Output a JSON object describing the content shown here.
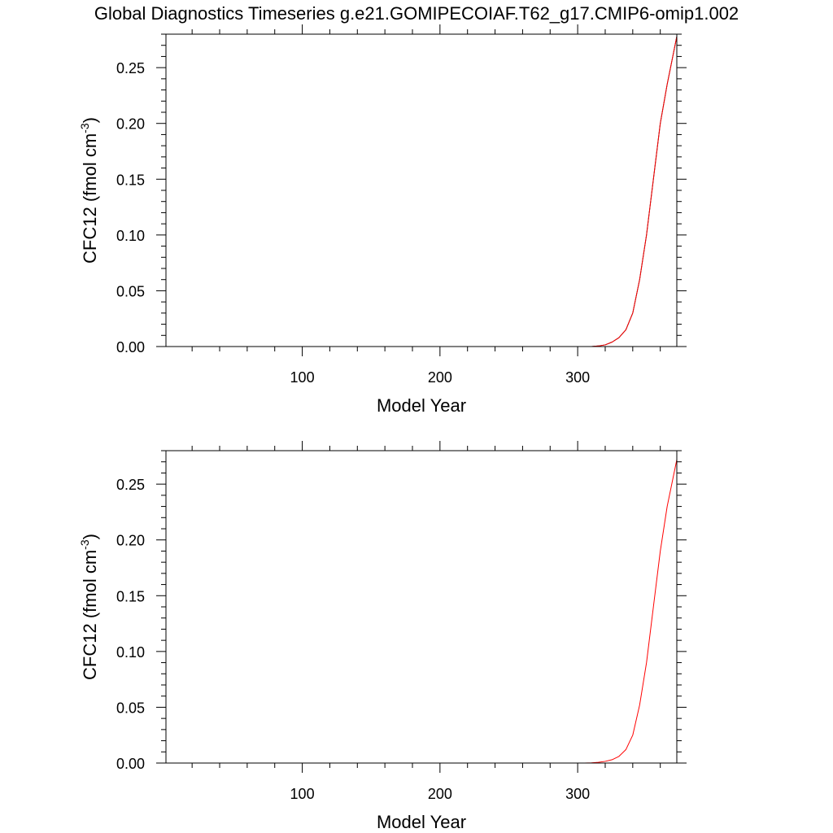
{
  "figure": {
    "title": "Global Diagnostics Timeseries g.e21.GOMIPECOIAF.T62_g17.CMIP6-omip1.002"
  },
  "chart_data": [
    {
      "type": "line",
      "title": "",
      "xlabel": "Model Year",
      "ylabel": "CFC12 (fmol cm-3)",
      "ylabel_parts": {
        "main": "CFC12 (fmol cm",
        "sup": "-3",
        "tail": ")"
      },
      "xlim": [
        1,
        372
      ],
      "ylim": [
        0,
        0.28
      ],
      "x_major_ticks": [
        100,
        200,
        300
      ],
      "x_tick_labels": [
        "100",
        "200",
        "300"
      ],
      "x_minor_step": 20,
      "y_major_ticks": [
        0,
        0.05,
        0.1,
        0.15,
        0.2,
        0.25
      ],
      "y_tick_labels": [
        "0.00",
        "0.05",
        "0.10",
        "0.15",
        "0.20",
        "0.25"
      ],
      "y_minor_step": 0.01,
      "grid": false,
      "series": [
        {
          "color": "#000000",
          "x": [
            1,
            300,
            310,
            315,
            320,
            325,
            330,
            335,
            340,
            345,
            350,
            355,
            360,
            365,
            372
          ],
          "y": [
            0,
            0,
            0,
            0.0005,
            0.0015,
            0.004,
            0.008,
            0.015,
            0.03,
            0.06,
            0.1,
            0.15,
            0.2,
            0.235,
            0.278
          ]
        },
        {
          "color": "#ff0000",
          "x": [
            1,
            300,
            310,
            315,
            320,
            325,
            330,
            335,
            340,
            345,
            350,
            355,
            360,
            365,
            372
          ],
          "y": [
            0,
            0,
            0,
            0.0005,
            0.0015,
            0.004,
            0.008,
            0.015,
            0.03,
            0.06,
            0.1,
            0.15,
            0.2,
            0.235,
            0.278
          ]
        }
      ]
    },
    {
      "type": "line",
      "title": "",
      "xlabel": "Model Year",
      "ylabel": "CFC12 (fmol cm-3)",
      "ylabel_parts": {
        "main": "CFC12 (fmol cm",
        "sup": "-3",
        "tail": ")"
      },
      "xlim": [
        1,
        372
      ],
      "ylim": [
        0,
        0.28
      ],
      "x_major_ticks": [
        100,
        200,
        300
      ],
      "x_tick_labels": [
        "100",
        "200",
        "300"
      ],
      "x_minor_step": 20,
      "y_major_ticks": [
        0,
        0.05,
        0.1,
        0.15,
        0.2,
        0.25
      ],
      "y_tick_labels": [
        "0.00",
        "0.05",
        "0.10",
        "0.15",
        "0.20",
        "0.25"
      ],
      "y_minor_step": 0.01,
      "grid": false,
      "series": [
        {
          "color": "#ff0000",
          "x": [
            1,
            305,
            310,
            315,
            320,
            325,
            330,
            335,
            340,
            345,
            350,
            355,
            360,
            365,
            372
          ],
          "y": [
            0,
            0,
            0.0002,
            0.0006,
            0.0015,
            0.003,
            0.006,
            0.012,
            0.025,
            0.052,
            0.09,
            0.14,
            0.19,
            0.23,
            0.272
          ]
        }
      ]
    }
  ]
}
